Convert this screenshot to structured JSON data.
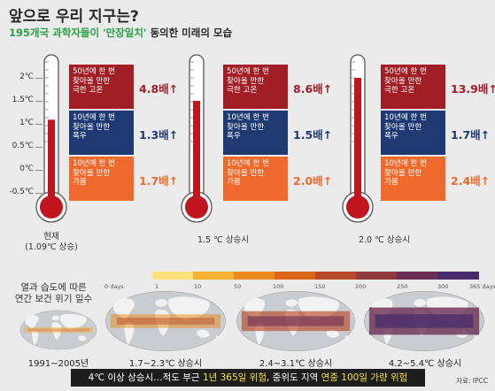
{
  "title": "앞으로 우리 지구는?",
  "subtitle_highlight": "195개국 과학자들이 '만장일치'",
  "subtitle_rest": " 동의한 미래의 모습",
  "colors": {
    "extreme_heat": "#a01e24",
    "heavy_rain": "#1f3a73",
    "drought": "#ef6a2c",
    "thermo": "#c0141e"
  },
  "y_ticks": [
    "2℃",
    "1.5℃",
    "1℃",
    "0.5℃",
    "0℃",
    "-0.5℃"
  ],
  "chart_data": {
    "type": "bar",
    "title": "앞으로 우리 지구는?",
    "ylabel": "",
    "ylim": [
      -0.5,
      2.5
    ],
    "scenarios": [
      {
        "caption_line1": "현재",
        "caption_line2": "(1.09℃ 상승)",
        "warming": 1.09
      },
      {
        "caption_line1": "1.5 ℃ 상승시",
        "caption_line2": "",
        "warming": 1.5
      },
      {
        "caption_line1": "2.0 ℃ 상승시",
        "caption_line2": "",
        "warming": 2.0
      }
    ],
    "categories": [
      "50년에 한 번 찾아올 만한 극한 고온",
      "10년에 한 번 찾아올 만한 폭우",
      "10년에 한 번 찾아올 만한 가뭄"
    ],
    "category_lines": [
      [
        "50년에 한 번",
        "찾아올 만한",
        "극한 고온"
      ],
      [
        "10년에 한 번",
        "찾아올 만한",
        "폭우"
      ],
      [
        "10년에 한 번",
        "찾아올 만한",
        "가뭄"
      ]
    ],
    "series": [
      {
        "values": [
          4.8,
          1.3,
          1.7
        ],
        "labels": [
          "4.8배↑",
          "1.3배↑",
          "1.7배↑"
        ]
      },
      {
        "values": [
          8.6,
          1.5,
          2.0
        ],
        "labels": [
          "8.6배↑",
          "1.5배↑",
          "2.0배↑"
        ]
      },
      {
        "values": [
          13.9,
          1.7,
          2.4
        ],
        "labels": [
          "13.9배↑",
          "1.7배↑",
          "2.4배↑"
        ]
      }
    ]
  },
  "maps": {
    "section_title_line1": "열과 습도에 따른",
    "section_title_line2": "연간 보건 위기 일수",
    "legend_ticks": [
      "0 days",
      "1",
      "10",
      "50",
      "100",
      "150",
      "200",
      "250",
      "300",
      "365 days"
    ],
    "legend_colors": [
      "#ffe07a",
      "#f7b233",
      "#ec8a1f",
      "#d9661b",
      "#b84a2a",
      "#8e3a3e",
      "#6a2f54",
      "#4a2b6b"
    ],
    "labels": [
      "1991~2005년",
      "1.7~2.3℃ 상승시",
      "2.4~3.1℃ 상승시",
      "4.2~5.4℃ 상승시"
    ],
    "levels": [
      0.15,
      0.35,
      0.6,
      0.9
    ]
  },
  "bottom_text": {
    "p1": "4℃ 이상 상승시…적도 부근 ",
    "h1": "1년 365일 위험",
    "p2": ", 중위도 지역 ",
    "h2": "연중 100일 가량 위험"
  },
  "source": "자료: IPCC"
}
